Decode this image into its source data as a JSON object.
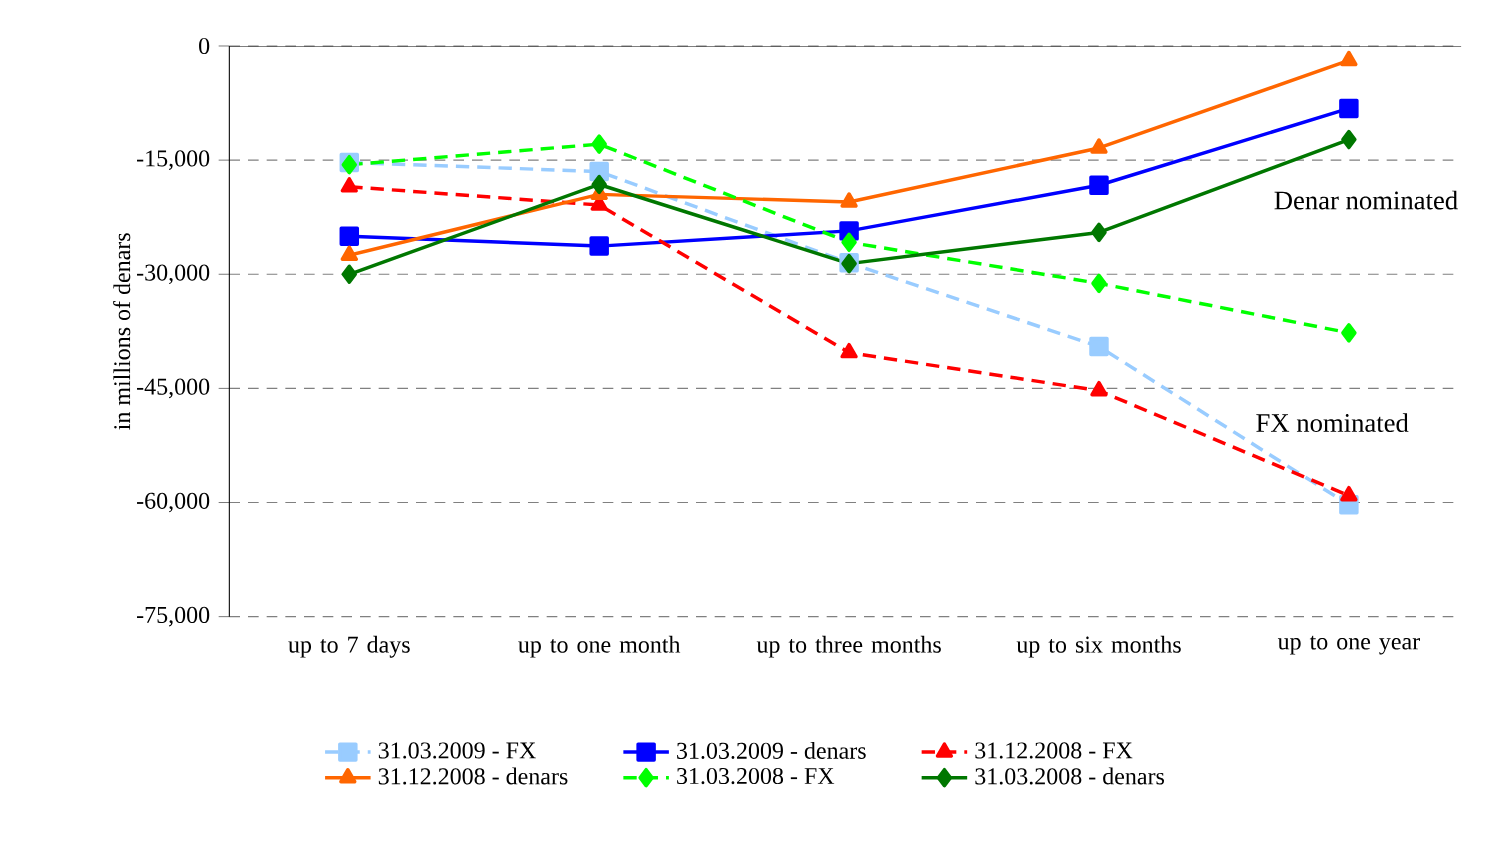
{
  "chart_data": {
    "type": "line",
    "ylabel": "in millions of denars",
    "categories": [
      "up to 7 days",
      "up to one month",
      "up to three months",
      "up to six months",
      "up to one year"
    ],
    "series": [
      {
        "name": "31.03.2009 - FX",
        "color": "#99ccff",
        "marker": "square",
        "line_style": "dashed",
        "values": [
          -15300,
          -16500,
          -28500,
          -39500,
          -60300
        ]
      },
      {
        "name": "31.03.2009 - denars",
        "color": "#0000ff",
        "marker": "square",
        "line_style": "solid",
        "values": [
          -25000,
          -26300,
          -24300,
          -18300,
          -8200
        ]
      },
      {
        "name": "31.12.2008 - FX",
        "color": "#ff0000",
        "marker": "triangle",
        "line_style": "dashed",
        "values": [
          -18500,
          -20900,
          -40300,
          -45300,
          -59100
        ]
      },
      {
        "name": "31.12.2008 - denars",
        "color": "#ff6600",
        "marker": "triangle",
        "line_style": "solid",
        "values": [
          -27500,
          -19500,
          -20500,
          -13400,
          -1900
        ]
      },
      {
        "name": "31.03.2008 - FX",
        "color": "#00ff00",
        "marker": "diamond",
        "line_style": "dashed",
        "values": [
          -15600,
          -12900,
          -25800,
          -31200,
          -37700
        ]
      },
      {
        "name": "31.03.2008 - denars",
        "color": "#007700",
        "marker": "diamond",
        "line_style": "solid",
        "values": [
          -30000,
          -18200,
          -28600,
          -24500,
          -12300
        ]
      }
    ],
    "ylim": [
      -75000,
      0
    ],
    "yticks": [
      0,
      {
        "value": -15000,
        "label": "-15,000"
      },
      {
        "value": -30000,
        "label": "-30,000"
      },
      {
        "value": -45000,
        "label": "-45,000"
      },
      {
        "value": -60000,
        "label": "-60,000"
      },
      {
        "value": -75000,
        "label": "-75,000"
      }
    ],
    "grid": "y",
    "legend": "bottom",
    "annotations": [
      "Denar nominated",
      "FX nominated"
    ]
  }
}
